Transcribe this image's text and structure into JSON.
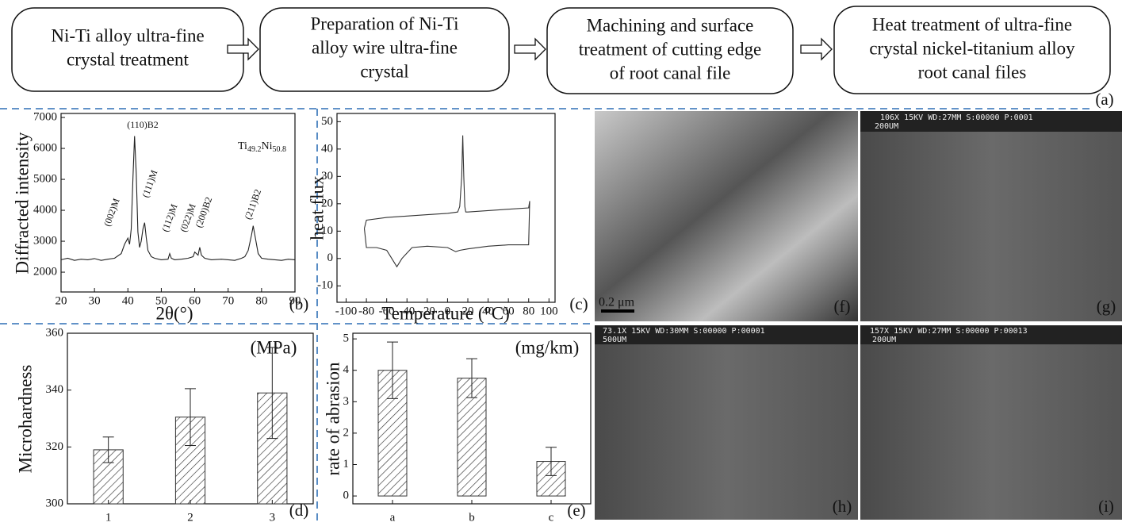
{
  "flowchart": {
    "label": "(a)",
    "steps": [
      {
        "lines": [
          "Ni-Ti alloy ultra-fine",
          "crystal treatment"
        ]
      },
      {
        "lines": [
          "Preparation of Ni-Ti",
          "alloy wire ultra-fine",
          "crystal"
        ]
      },
      {
        "lines": [
          "Machining and surface",
          "treatment of cutting edge",
          "of root canal file"
        ]
      },
      {
        "lines": [
          "Heat treatment of ultra-fine",
          "crystal nickel-titanium alloy",
          "root canal files"
        ]
      }
    ]
  },
  "chart_data": [
    {
      "type": "line",
      "panel_label": "(b)",
      "xlabel": "2θ(°)",
      "ylabel": "Diffracted intensity",
      "annotations": [
        "(110)B2",
        "(002)M",
        "(111)M",
        "(112)M",
        "(022)M",
        "(200)B2",
        "(211)B2"
      ],
      "composition": [
        "Ti",
        "49.2",
        "Ni",
        "50.8"
      ],
      "xlim": [
        20,
        90
      ],
      "xticks": [
        20,
        30,
        40,
        50,
        60,
        70,
        80,
        90
      ],
      "ylim": [
        1360,
        7130
      ],
      "yticks": [
        2000,
        3000,
        4000,
        5000,
        6000,
        7000
      ],
      "series": [
        {
          "color": "#222",
          "x": [
            20,
            22,
            24,
            26,
            28,
            30,
            32,
            34,
            36,
            38,
            39,
            40,
            40.5,
            41,
            41.5,
            42,
            42.5,
            43,
            43.5,
            44,
            44.5,
            45,
            45.5,
            46,
            47,
            48,
            50,
            52,
            52.5,
            53,
            54,
            56,
            58,
            59.5,
            60,
            61,
            61.5,
            62,
            63,
            65,
            68,
            70,
            72,
            74,
            75,
            76,
            77,
            77.5,
            78,
            79,
            80,
            82,
            84,
            86,
            88,
            90
          ],
          "values": [
            2400,
            2450,
            2380,
            2420,
            2400,
            2440,
            2380,
            2420,
            2450,
            2600,
            2900,
            3100,
            2900,
            3400,
            5000,
            6400,
            5200,
            3300,
            2800,
            3000,
            3400,
            3600,
            3100,
            2700,
            2500,
            2450,
            2400,
            2420,
            2600,
            2450,
            2400,
            2420,
            2450,
            2500,
            2650,
            2550,
            2800,
            2550,
            2450,
            2400,
            2420,
            2400,
            2380,
            2450,
            2500,
            2700,
            3200,
            3500,
            3200,
            2600,
            2450,
            2420,
            2400,
            2380,
            2420,
            2400
          ]
        }
      ]
    },
    {
      "type": "line",
      "panel_label": "(c)",
      "xlabel": "Temperature (°C)",
      "ylabel": "heat flux",
      "xlim": [
        -109,
        106
      ],
      "xticks": [
        -100,
        -80,
        -60,
        -40,
        -20,
        0,
        20,
        40,
        60,
        80,
        100
      ],
      "ylim": [
        -16,
        53
      ],
      "yticks": [
        -10,
        0,
        10,
        20,
        30,
        40,
        50
      ],
      "series": [
        {
          "color": "#333",
          "x": [
            -82,
            -80,
            -60,
            -40,
            -20,
            0,
            10,
            12,
            14,
            15,
            16,
            17,
            18,
            20,
            40,
            60,
            80,
            81,
            80,
            60,
            40,
            20,
            12,
            8,
            0,
            -20,
            -35,
            -45,
            -50,
            -55,
            -60,
            -70,
            -80,
            -82
          ],
          "values": [
            11,
            14,
            15,
            15.5,
            16,
            16.5,
            17,
            19,
            30,
            45,
            30,
            19,
            17,
            17,
            17.5,
            18,
            18.5,
            21,
            5,
            5,
            4.5,
            3.5,
            3,
            2.5,
            4,
            4.5,
            4,
            0,
            -3,
            0,
            3,
            4,
            4,
            11
          ]
        }
      ]
    },
    {
      "type": "bar",
      "panel_label": "(d)",
      "ylabel": "Microhardness",
      "unit": "(MPa)",
      "color": "#333",
      "categories": [
        "1",
        "2",
        "3"
      ],
      "values": [
        319,
        330.5,
        339
      ],
      "errors": [
        4.5,
        10,
        16
      ],
      "ylim": [
        300,
        360
      ],
      "yticks": [
        300,
        320,
        340,
        360
      ]
    },
    {
      "type": "bar",
      "panel_label": "(e)",
      "ylabel": "rate of abrasion",
      "unit": "(mg/km)",
      "color": "#333",
      "categories": [
        "a",
        "b",
        "c"
      ],
      "values": [
        4.0,
        3.75,
        1.1
      ],
      "errors": [
        0.9,
        0.62,
        0.45
      ],
      "ylim": [
        -0.25,
        5.18
      ],
      "yticks": [
        0,
        1,
        2,
        3,
        4,
        5
      ]
    }
  ],
  "images": [
    {
      "label": "(f)",
      "scale": "0.2 μm"
    },
    {
      "label": "(g)",
      "header": "106X    15KV WD:27MM    S:00000 P:0001",
      "scale": "200UM"
    },
    {
      "label": "(h)",
      "header": "73.1X    15KV WD:30MM    S:00000 P:00001",
      "scale": "500UM"
    },
    {
      "label": "(i)",
      "header": "157X    15KV WD:27MM    S:00000 P:00013",
      "scale": "200UM"
    }
  ]
}
